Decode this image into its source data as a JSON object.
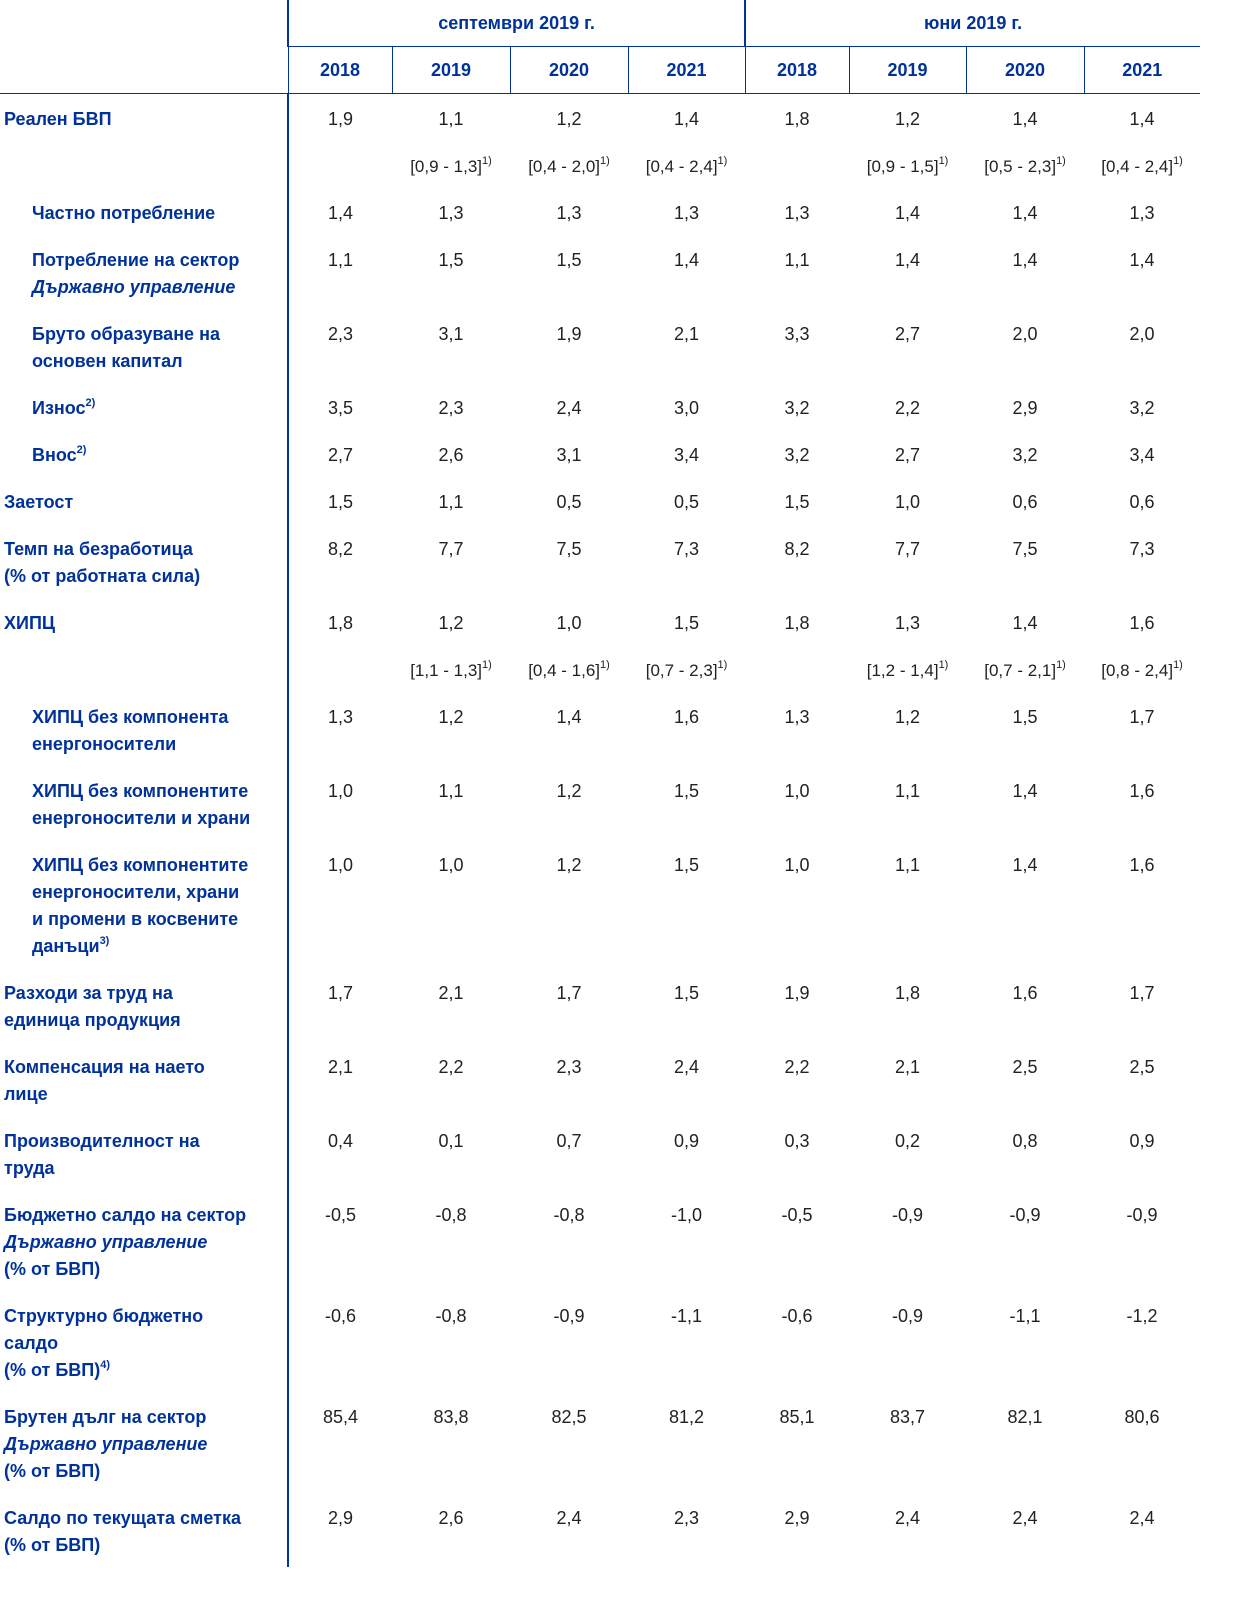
{
  "header": {
    "groups": [
      "септември 2019 г.",
      "юни 2019 г."
    ],
    "years": [
      "2018",
      "2019",
      "2020",
      "2021",
      "2018",
      "2019",
      "2020",
      "2021"
    ]
  },
  "accent_color": "#003299",
  "rows": [
    {
      "sub": false,
      "lines": [
        {
          "t": "Реален БВП"
        }
      ],
      "values": [
        "1,9",
        "1,1",
        "1,2",
        "1,4",
        "1,8",
        "1,2",
        "1,4",
        "1,4"
      ]
    },
    {
      "range": true,
      "lines": [],
      "values": [
        "",
        "[0,9 - 1,3]",
        "[0,4 - 2,0]",
        "[0,4 - 2,4]",
        "",
        "[0,9 - 1,5]",
        "[0,5 - 2,3]",
        "[0,4 - 2,4]"
      ],
      "sup": "1)"
    },
    {
      "sub": true,
      "lines": [
        {
          "t": "Частно потребление"
        }
      ],
      "values": [
        "1,4",
        "1,3",
        "1,3",
        "1,3",
        "1,3",
        "1,4",
        "1,4",
        "1,3"
      ]
    },
    {
      "sub": true,
      "lines": [
        {
          "t": "Потребление на сектор"
        },
        {
          "t": "Държавно управление",
          "i": true
        }
      ],
      "values": [
        "1,1",
        "1,5",
        "1,5",
        "1,4",
        "1,1",
        "1,4",
        "1,4",
        "1,4"
      ]
    },
    {
      "sub": true,
      "lines": [
        {
          "t": "Бруто образуване на"
        },
        {
          "t": "основен капитал"
        }
      ],
      "values": [
        "2,3",
        "3,1",
        "1,9",
        "2,1",
        "3,3",
        "2,7",
        "2,0",
        "2,0"
      ]
    },
    {
      "sub": true,
      "lines": [
        {
          "t": "Износ",
          "s": "2)"
        }
      ],
      "values": [
        "3,5",
        "2,3",
        "2,4",
        "3,0",
        "3,2",
        "2,2",
        "2,9",
        "3,2"
      ]
    },
    {
      "sub": true,
      "lines": [
        {
          "t": "Внос",
          "s": "2)"
        }
      ],
      "values": [
        "2,7",
        "2,6",
        "3,1",
        "3,4",
        "3,2",
        "2,7",
        "3,2",
        "3,4"
      ]
    },
    {
      "sub": false,
      "lines": [
        {
          "t": "Заетост"
        }
      ],
      "values": [
        "1,5",
        "1,1",
        "0,5",
        "0,5",
        "1,5",
        "1,0",
        "0,6",
        "0,6"
      ]
    },
    {
      "sub": false,
      "lines": [
        {
          "t": "Темп на безработица"
        },
        {
          "t": "(% от работната сила)"
        }
      ],
      "values": [
        "8,2",
        "7,7",
        "7,5",
        "7,3",
        "8,2",
        "7,7",
        "7,5",
        "7,3"
      ]
    },
    {
      "sub": false,
      "lines": [
        {
          "t": "ХИПЦ"
        }
      ],
      "values": [
        "1,8",
        "1,2",
        "1,0",
        "1,5",
        "1,8",
        "1,3",
        "1,4",
        "1,6"
      ]
    },
    {
      "range": true,
      "lines": [],
      "values": [
        "",
        "[1,1 - 1,3]",
        "[0,4 - 1,6]",
        "[0,7 - 2,3]",
        "",
        "[1,2 - 1,4]",
        "[0,7 - 2,1]",
        "[0,8 - 2,4]"
      ],
      "sup": "1)"
    },
    {
      "sub": true,
      "lines": [
        {
          "t": "ХИПЦ без компонента"
        },
        {
          "t": "енергоносители"
        }
      ],
      "values": [
        "1,3",
        "1,2",
        "1,4",
        "1,6",
        "1,3",
        "1,2",
        "1,5",
        "1,7"
      ]
    },
    {
      "sub": true,
      "lines": [
        {
          "t": "ХИПЦ без компонентите"
        },
        {
          "t": "енергоносители и храни"
        }
      ],
      "values": [
        "1,0",
        "1,1",
        "1,2",
        "1,5",
        "1,0",
        "1,1",
        "1,4",
        "1,6"
      ]
    },
    {
      "sub": true,
      "lines": [
        {
          "t": "ХИПЦ без компонентите"
        },
        {
          "t": "енергоносители, храни"
        },
        {
          "t": "и промени в косвените"
        },
        {
          "t": "данъци",
          "s": "3)"
        }
      ],
      "values": [
        "1,0",
        "1,0",
        "1,2",
        "1,5",
        "1,0",
        "1,1",
        "1,4",
        "1,6"
      ]
    },
    {
      "sub": false,
      "lines": [
        {
          "t": "Разходи за труд на"
        },
        {
          "t": "единица продукция"
        }
      ],
      "values": [
        "1,7",
        "2,1",
        "1,7",
        "1,5",
        "1,9",
        "1,8",
        "1,6",
        "1,7"
      ]
    },
    {
      "sub": false,
      "lines": [
        {
          "t": "Компенсация на наето"
        },
        {
          "t": "лице"
        }
      ],
      "values": [
        "2,1",
        "2,2",
        "2,3",
        "2,4",
        "2,2",
        "2,1",
        "2,5",
        "2,5"
      ]
    },
    {
      "sub": false,
      "lines": [
        {
          "t": "Производителност на"
        },
        {
          "t": "труда"
        }
      ],
      "values": [
        "0,4",
        "0,1",
        "0,7",
        "0,9",
        "0,3",
        "0,2",
        "0,8",
        "0,9"
      ]
    },
    {
      "sub": false,
      "lines": [
        {
          "t": "Бюджетно салдо на сектор"
        },
        {
          "t": "Държавно управление",
          "i": true
        },
        {
          "t": "(% от БВП)"
        }
      ],
      "values": [
        "-0,5",
        "-0,8",
        "-0,8",
        "-1,0",
        "-0,5",
        "-0,9",
        "-0,9",
        "-0,9"
      ]
    },
    {
      "sub": false,
      "lines": [
        {
          "t": "Структурно бюджетно"
        },
        {
          "t": "салдо"
        },
        {
          "t": "(% от БВП)",
          "s": "4)"
        }
      ],
      "values": [
        "-0,6",
        "-0,8",
        "-0,9",
        "-1,1",
        "-0,6",
        "-0,9",
        "-1,1",
        "-1,2"
      ]
    },
    {
      "sub": false,
      "lines": [
        {
          "t": "Брутен дълг на сектор"
        },
        {
          "t": "Държавно управление",
          "i": true
        },
        {
          "t": "(% от БВП)"
        }
      ],
      "values": [
        "85,4",
        "83,8",
        "82,5",
        "81,2",
        "85,1",
        "83,7",
        "82,1",
        "80,6"
      ]
    },
    {
      "sub": false,
      "lines": [
        {
          "t": "Салдо по текущата сметка"
        },
        {
          "t": "(% от БВП)"
        }
      ],
      "values": [
        "2,9",
        "2,6",
        "2,4",
        "2,3",
        "2,9",
        "2,4",
        "2,4",
        "2,4"
      ]
    }
  ]
}
